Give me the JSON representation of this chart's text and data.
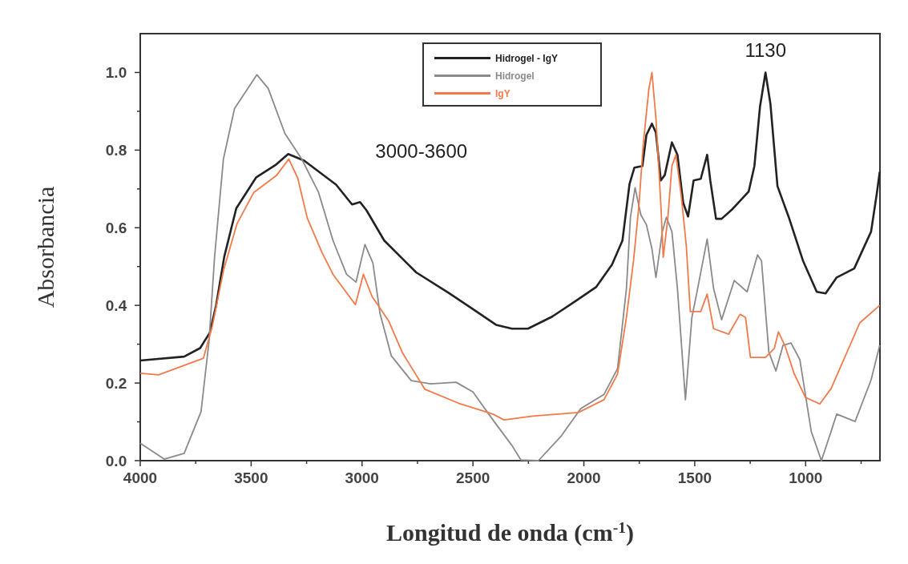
{
  "chart_data": {
    "type": "line",
    "xlabel": "Longitud de onda (cm$^{-1}$)",
    "ylabel": "Absorbancia",
    "annotations": [
      "3000-3600",
      "1130"
    ],
    "xlim": [
      4000,
      665
    ],
    "ylim": [
      0,
      1.1
    ],
    "xticks": [
      4000,
      {
        "value": 3750,
        "label": null
      },
      3500,
      {
        "value": 3250,
        "label": null
      },
      3000,
      {
        "value": 2750,
        "label": null
      },
      2500,
      {
        "value": 2250,
        "label": null
      },
      2000,
      {
        "value": 1750,
        "label": null
      },
      1500,
      {
        "value": 1250,
        "label": null
      },
      1000,
      {
        "value": 750,
        "label": null
      }
    ],
    "yticks": [
      {
        "value": 0,
        "label": "0.0"
      },
      {
        "value": 0.1,
        "label": null
      },
      0.2,
      {
        "value": 0.3,
        "label": null
      },
      0.4,
      {
        "value": 0.5,
        "label": null
      },
      0.6,
      {
        "value": 0.7,
        "label": null
      },
      0.8,
      {
        "value": 0.9,
        "label": null
      },
      {
        "value": 1,
        "label": "1.0"
      }
    ],
    "grid": false,
    "legend": "top",
    "marker": "none",
    "line_style": "solid",
    "series": [
      {
        "name": "Hidrogel - IgY",
        "color": "#222222",
        "x": [
          4000,
          3802,
          3730,
          3686,
          3658,
          3621,
          3567,
          3477,
          3387,
          3333,
          3261,
          3189,
          3117,
          3045,
          3009,
          2980,
          2900,
          2756,
          2612,
          2504,
          2396,
          2324,
          2252,
          2143,
          2035,
          1945,
          1873,
          1826,
          1794,
          1772,
          1736,
          1718,
          1693,
          1675,
          1653,
          1635,
          1603,
          1578,
          1552,
          1530,
          1505,
          1473,
          1444,
          1430,
          1404,
          1379,
          1332,
          1257,
          1231,
          1206,
          1181,
          1159,
          1127,
          1076,
          1012,
          950,
          910,
          860,
          781,
          705,
          680,
          666
        ],
        "values": [
          0.258,
          0.268,
          0.29,
          0.33,
          0.4,
          0.526,
          0.65,
          0.73,
          0.763,
          0.79,
          0.773,
          0.742,
          0.711,
          0.66,
          0.666,
          0.645,
          0.567,
          0.485,
          0.433,
          0.392,
          0.35,
          0.34,
          0.34,
          0.371,
          0.412,
          0.447,
          0.505,
          0.567,
          0.713,
          0.755,
          0.759,
          0.839,
          0.868,
          0.845,
          0.722,
          0.736,
          0.82,
          0.788,
          0.664,
          0.629,
          0.722,
          0.726,
          0.788,
          0.722,
          0.623,
          0.623,
          0.647,
          0.693,
          0.759,
          0.911,
          1.0,
          0.92,
          0.707,
          0.627,
          0.515,
          0.435,
          0.431,
          0.472,
          0.495,
          0.59,
          0.685,
          0.744
        ]
      },
      {
        "name": "Hidrogel",
        "color": "#8a8a8a",
        "x": [
          4000,
          3892,
          3802,
          3726,
          3690,
          3665,
          3625,
          3575,
          3474,
          3423,
          3348,
          3272,
          3196,
          3131,
          3070,
          3027,
          2987,
          2951,
          2919,
          2868,
          2778,
          2691,
          2576,
          2500,
          2410,
          2324,
          2284,
          2205,
          2104,
          2014,
          1909,
          1848,
          1808,
          1790,
          1769,
          1743,
          1718,
          1693,
          1675,
          1646,
          1628,
          1603,
          1578,
          1542,
          1513,
          1487,
          1444,
          1415,
          1379,
          1322,
          1264,
          1217,
          1199,
          1166,
          1134,
          1102,
          1066,
          1026,
          975,
          929,
          885,
          860,
          777,
          705,
          666
        ],
        "values": [
          0.045,
          0.004,
          0.019,
          0.126,
          0.307,
          0.524,
          0.777,
          0.907,
          0.994,
          0.959,
          0.843,
          0.777,
          0.691,
          0.567,
          0.48,
          0.46,
          0.557,
          0.509,
          0.379,
          0.27,
          0.206,
          0.198,
          0.202,
          0.177,
          0.105,
          0.039,
          0.002,
          0,
          0.062,
          0.134,
          0.171,
          0.237,
          0.443,
          0.627,
          0.703,
          0.633,
          0.608,
          0.546,
          0.472,
          0.59,
          0.627,
          0.59,
          0.443,
          0.157,
          0.369,
          0.443,
          0.571,
          0.443,
          0.363,
          0.464,
          0.435,
          0.53,
          0.515,
          0.28,
          0.231,
          0.297,
          0.303,
          0.26,
          0.076,
          0,
          0.076,
          0.12,
          0.101,
          0.208,
          0.297
        ]
      },
      {
        "name": "IgY",
        "color": "#f07a4a",
        "x": [
          4000,
          3917,
          3715,
          3676,
          3625,
          3564,
          3488,
          3387,
          3330,
          3290,
          3247,
          3182,
          3131,
          3030,
          2994,
          2955,
          2879,
          2818,
          2717,
          2565,
          2410,
          2360,
          2230,
          2025,
          1909,
          1848,
          1808,
          1776,
          1751,
          1733,
          1707,
          1693,
          1675,
          1653,
          1642,
          1621,
          1603,
          1585,
          1560,
          1538,
          1520,
          1473,
          1444,
          1415,
          1347,
          1296,
          1271,
          1249,
          1181,
          1141,
          1123,
          1094,
          1051,
          1001,
          936,
          885,
          756,
          666
        ],
        "values": [
          0.225,
          0.221,
          0.264,
          0.344,
          0.489,
          0.61,
          0.691,
          0.734,
          0.777,
          0.728,
          0.625,
          0.538,
          0.48,
          0.402,
          0.48,
          0.423,
          0.359,
          0.278,
          0.184,
          0.148,
          0.12,
          0.105,
          0.115,
          0.124,
          0.157,
          0.223,
          0.369,
          0.515,
          0.662,
          0.81,
          0.957,
          1.0,
          0.882,
          0.662,
          0.524,
          0.627,
          0.759,
          0.788,
          0.678,
          0.553,
          0.384,
          0.384,
          0.429,
          0.34,
          0.326,
          0.377,
          0.369,
          0.266,
          0.266,
          0.289,
          0.332,
          0.297,
          0.223,
          0.163,
          0.146,
          0.186,
          0.355,
          0.4
        ]
      }
    ]
  }
}
